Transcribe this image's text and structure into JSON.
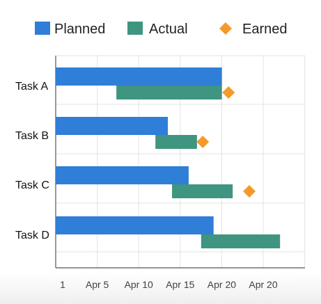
{
  "chart_data": {
    "type": "bar",
    "subtype": "gantt",
    "categories": [
      "Task A",
      "Task B",
      "Task C",
      "Task D"
    ],
    "x_ticks": [
      "1",
      "Apr 5",
      "Apr 10",
      "Apr 15",
      "Apr 20",
      "Apr 20"
    ],
    "xlim": [
      0,
      30
    ],
    "legend_position": "top",
    "grid": true,
    "series": [
      {
        "name": "Planned",
        "kind": "bar",
        "color": "#2f7ed8",
        "values": [
          [
            0,
            20
          ],
          [
            0,
            13.5
          ],
          [
            0,
            16
          ],
          [
            0,
            19
          ]
        ]
      },
      {
        "name": "Actual",
        "kind": "bar",
        "color": "#3f957f",
        "values": [
          [
            7.3,
            20
          ],
          [
            12,
            17
          ],
          [
            14,
            21.3
          ],
          [
            17.5,
            27
          ]
        ]
      },
      {
        "name": "Earned",
        "kind": "marker",
        "marker": "diamond",
        "color": "#f39a2b",
        "values": [
          20.8,
          17.7,
          23.3,
          null
        ]
      }
    ]
  }
}
